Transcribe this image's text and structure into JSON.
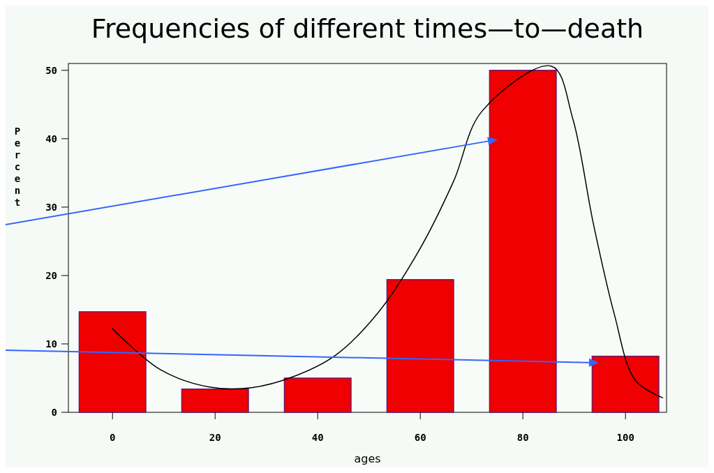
{
  "chart_data": {
    "type": "bar",
    "title": "Frequencies of different times—to—death",
    "xlabel": "ages",
    "ylabel": "Percent",
    "x": [
      0,
      20,
      40,
      60,
      80,
      100
    ],
    "series": [
      {
        "color": "#f00000",
        "values": [
          14.7,
          3.4,
          5.0,
          19.4,
          50,
          8.2
        ]
      },
      {
        "type": "line",
        "color": "#000000",
        "x": [
          -0.1,
          9.4,
          18.9,
          27.1,
          35.2,
          43.4,
          51.6,
          59.7,
          66.5,
          72.0,
          85.6,
          89.7,
          93.7,
          97.8,
          101.9,
          107.3
        ],
        "values": [
          12.3,
          6.2,
          3.7,
          3.6,
          5.2,
          8.3,
          14.4,
          23.6,
          33.8,
          44.0,
          50.6,
          43.0,
          27.7,
          14.4,
          4.7,
          2.1
        ]
      }
    ],
    "xlim": [
      -8.6,
      108
    ],
    "xticks": [
      0,
      20,
      40,
      60,
      80,
      100
    ],
    "ylim": [
      0,
      51
    ],
    "yticks": [
      0,
      10,
      20,
      30,
      40,
      50
    ],
    "grid": false
  }
}
